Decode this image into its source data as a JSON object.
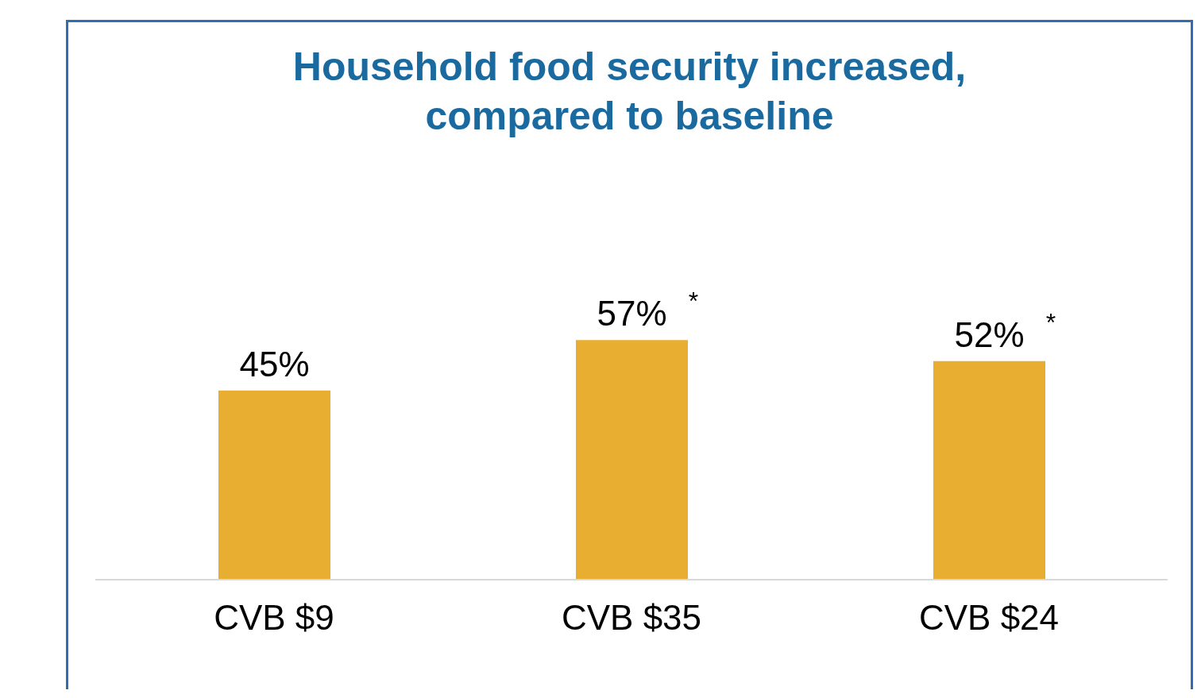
{
  "chart_data": {
    "type": "bar",
    "title": "Household food security increased,\ncompared to baseline",
    "categories": [
      "CVB $9",
      "CVB $35",
      "CVB $24"
    ],
    "values": [
      45,
      57,
      52
    ],
    "color": "#e8ae32",
    "value_labels": [
      "45%",
      "57%",
      "52%"
    ],
    "annotations": [
      {
        "text": "*",
        "x": "CVB $35",
        "y": 57
      },
      {
        "text": "*",
        "x": "CVB $24",
        "y": 52
      }
    ],
    "grid": false,
    "legend": false
  }
}
